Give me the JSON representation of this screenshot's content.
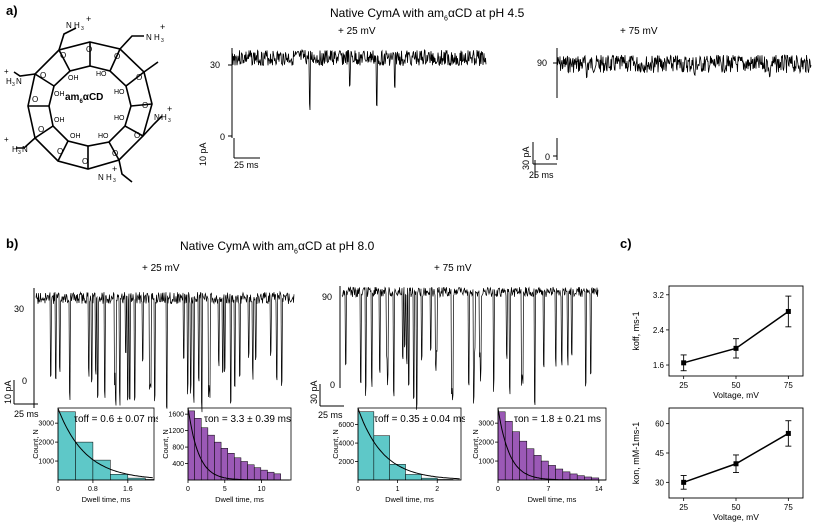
{
  "panel_a": {
    "label": "a)",
    "title": "Native CymA with am6αCD at pH 4.5",
    "molecule_label": "am6αCD",
    "trace_25": {
      "voltage": "+ 25 mV",
      "tick_top": "30",
      "tick_zero": "0",
      "scale_y": "10 pA",
      "scale_x": "25 ms"
    },
    "trace_75": {
      "voltage": "+ 75 mV",
      "tick_top": "90",
      "tick_zero": "0",
      "scale_y": "30 pA",
      "scale_x": "25 ms"
    }
  },
  "panel_b": {
    "label": "b)",
    "title": "Native CymA with am6αCD at pH 8.0",
    "trace_25": {
      "voltage": "+ 25 mV",
      "tick_top": "30",
      "tick_zero": "0",
      "scale_y": "10 pA",
      "scale_x": "25 ms"
    },
    "trace_75": {
      "voltage": "+ 75 mV",
      "tick_top": "90",
      "tick_zero": "0",
      "scale_y": "30 pA",
      "scale_x": "25 ms"
    }
  },
  "panel_c": {
    "label": "c)"
  },
  "chart_data": [
    {
      "type": "bar",
      "panel": "b-25mV-off",
      "annotation": "τoff = 0.6 ± 0.07 ms",
      "xlabel": "Dwell time, ms",
      "ylabel": "Count, N",
      "xlim": [
        0,
        2.2
      ],
      "ylim": [
        0,
        3800
      ],
      "xticks": [
        "0",
        "0.8",
        "1.6"
      ],
      "yticks": [
        "1000",
        "2000",
        "3000"
      ],
      "bin_width": 0.4,
      "values": [
        3600,
        2000,
        1050,
        300,
        100,
        30
      ],
      "fit": "exponential",
      "color": "#5ec8c8"
    },
    {
      "type": "bar",
      "panel": "b-25mV-on",
      "annotation": "τon = 3.3 ± 0.39 ms",
      "xlabel": "Dwell time, ms",
      "ylabel": "Count, N",
      "xlim": [
        0,
        14
      ],
      "ylim": [
        0,
        1750
      ],
      "xticks": [
        "0",
        "5",
        "10"
      ],
      "yticks": [
        "400",
        "800",
        "1200",
        "1600"
      ],
      "bin_width": 0.9,
      "values": [
        1680,
        1500,
        1270,
        1090,
        920,
        770,
        650,
        540,
        450,
        370,
        300,
        240,
        190,
        150
      ],
      "fit": "exponential",
      "color": "#9b59b6"
    },
    {
      "type": "bar",
      "panel": "b-75mV-off",
      "annotation": "τoff = 0.35 ± 0.04 ms",
      "xlabel": "Dwell time, ms",
      "ylabel": "Count, N",
      "xlim": [
        0,
        2.6
      ],
      "ylim": [
        0,
        7800
      ],
      "xticks": [
        "0",
        "1",
        "2"
      ],
      "yticks": [
        "2000",
        "4000",
        "6000"
      ],
      "bin_width": 0.4,
      "values": [
        7400,
        4800,
        1700,
        600,
        200,
        60,
        20
      ],
      "fit": "exponential",
      "color": "#5ec8c8"
    },
    {
      "type": "bar",
      "panel": "b-75mV-on",
      "annotation": "τon = 1.8 ± 0.21 ms",
      "xlabel": "Dwell time, ms",
      "ylabel": "Count, N",
      "xlim": [
        0,
        15
      ],
      "ylim": [
        0,
        3800
      ],
      "xticks": [
        "0",
        "7",
        "14"
      ],
      "yticks": [
        "1000",
        "2000",
        "3000"
      ],
      "bin_width": 1.0,
      "values": [
        3600,
        3100,
        2550,
        2050,
        1650,
        1300,
        1000,
        770,
        580,
        430,
        320,
        230,
        160,
        110
      ],
      "fit": "exponential",
      "color": "#9b59b6"
    },
    {
      "type": "line",
      "panel": "c-top",
      "x": [
        25,
        50,
        75
      ],
      "y": [
        1.65,
        1.98,
        2.82
      ],
      "yerr": [
        0.18,
        0.22,
        0.35
      ],
      "xlabel": "Voltage, mV",
      "ylabel": "koff, ms-1",
      "xlim": [
        18,
        82
      ],
      "ylim": [
        1.35,
        3.4
      ],
      "xticks": [
        "25",
        "50",
        "75"
      ],
      "yticks": [
        "1.6",
        "2.4",
        "3.2"
      ]
    },
    {
      "type": "line",
      "panel": "c-bottom",
      "x": [
        25,
        50,
        75
      ],
      "y": [
        30,
        39.5,
        55
      ],
      "yerr": [
        3.5,
        4.5,
        6.5
      ],
      "xlabel": "Voltage, mV",
      "ylabel": "kon, mM-1ms-1",
      "xlim": [
        18,
        82
      ],
      "ylim": [
        22,
        68
      ],
      "xticks": [
        "25",
        "50",
        "75"
      ],
      "yticks": [
        "30",
        "45",
        "60"
      ]
    }
  ]
}
